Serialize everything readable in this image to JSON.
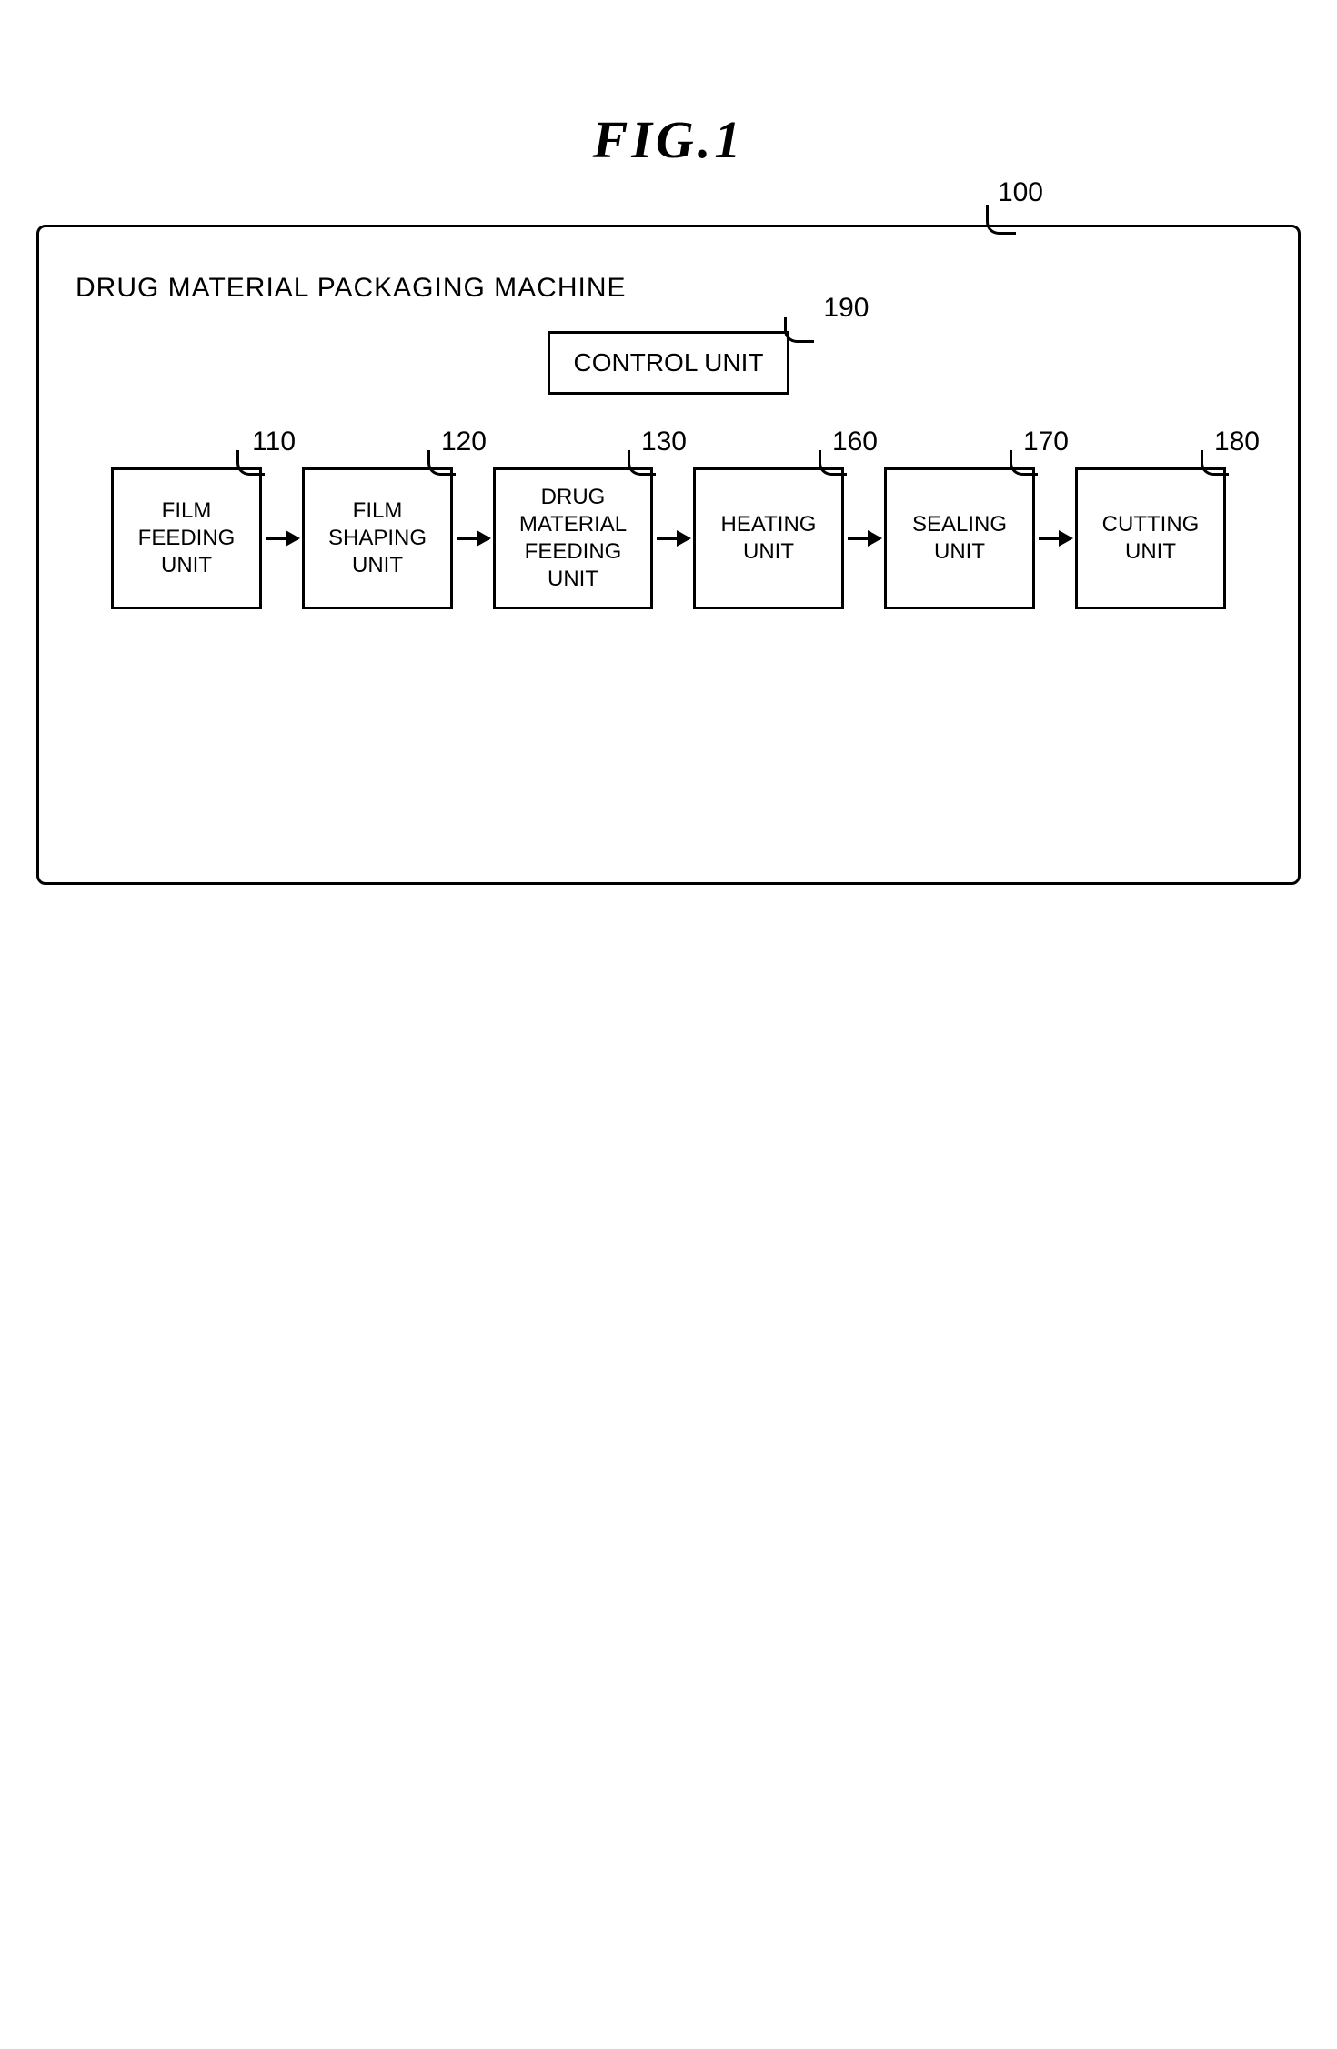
{
  "figure_title": "FIG.1",
  "machine": {
    "title": "DRUG MATERIAL PACKAGING MACHINE",
    "ref": "100"
  },
  "control": {
    "label": "CONTROL UNIT",
    "ref": "190"
  },
  "units": [
    {
      "label": "FILM\nFEEDING\nUNIT",
      "ref": "110"
    },
    {
      "label": "FILM\nSHAPING\nUNIT",
      "ref": "120"
    },
    {
      "label": "DRUG\nMATERIAL\nFEEDING\nUNIT",
      "ref": "130"
    },
    {
      "label": "HEATING\nUNIT",
      "ref": "160"
    },
    {
      "label": "SEALING\nUNIT",
      "ref": "170"
    },
    {
      "label": "CUTTING\nUNIT",
      "ref": "180"
    }
  ]
}
